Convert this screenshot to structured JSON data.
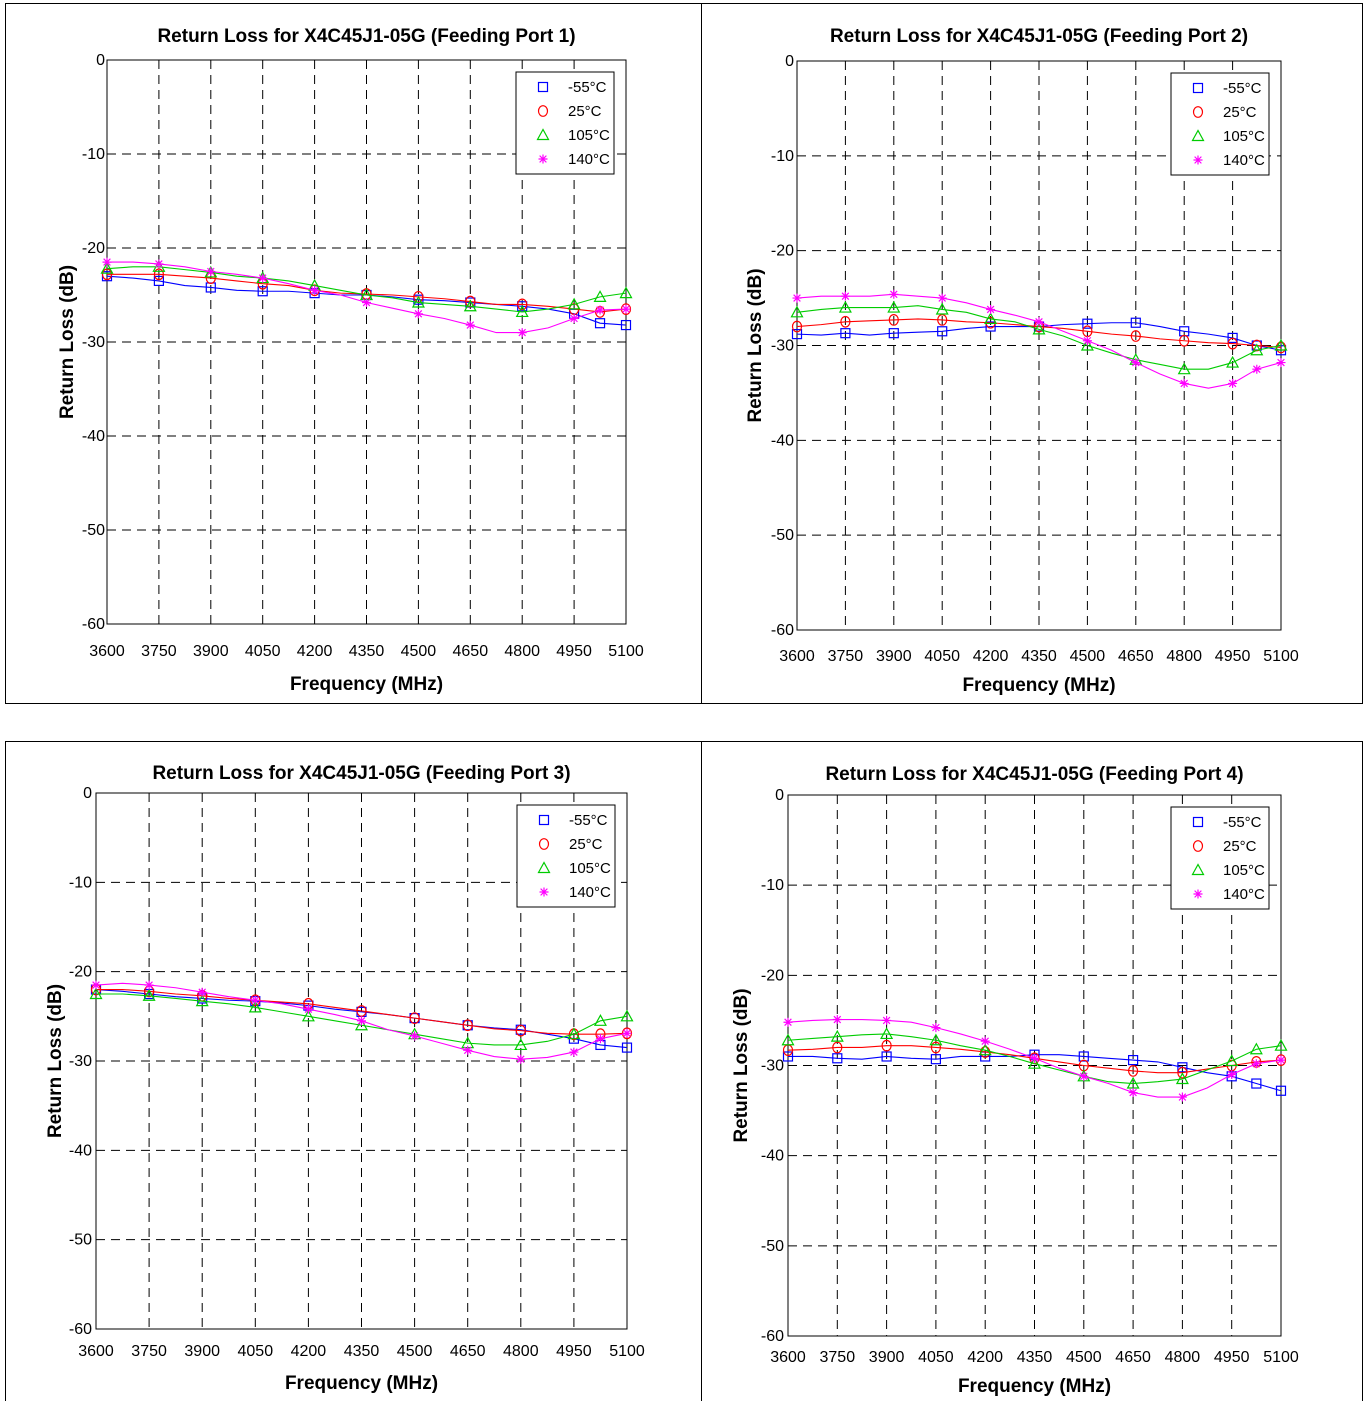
{
  "charts": [
    {
      "title": "Return Loss for X4C45J1-05G (Feeding Port 1)",
      "xlabel": "Frequency (MHz)",
      "ylabel": "Return Loss (dB)"
    },
    {
      "title": "Return Loss for X4C45J1-05G (Feeding Port 2)",
      "xlabel": "Frequency (MHz)",
      "ylabel": "Return Loss (dB)"
    },
    {
      "title": "Return Loss for X4C45J1-05G (Feeding Port 3)",
      "xlabel": "Frequency (MHz)",
      "ylabel": "Return Loss (dB)"
    },
    {
      "title": "Return Loss for X4C45J1-05G (Feeding Port 4)",
      "xlabel": "Frequency (MHz)",
      "ylabel": "Return Loss (dB)"
    }
  ],
  "chart_data": [
    {
      "type": "line",
      "title": "Return Loss for X4C45J1-05G (Feeding Port 1)",
      "xlabel": "Frequency (MHz)",
      "ylabel": "Return Loss (dB)",
      "xlim": [
        3600,
        5100
      ],
      "ylim": [
        -60,
        0
      ],
      "xticks": [
        3600,
        3750,
        3900,
        4050,
        4200,
        4350,
        4500,
        4650,
        4800,
        4950,
        5100
      ],
      "yticks": [
        0,
        -10,
        -20,
        -30,
        -40,
        -50,
        -60
      ],
      "grid": true,
      "legend_position": "top-right",
      "x": [
        3600,
        3675,
        3750,
        3825,
        3900,
        3975,
        4050,
        4125,
        4200,
        4275,
        4350,
        4425,
        4500,
        4575,
        4650,
        4725,
        4800,
        4875,
        4950,
        5025,
        5100
      ],
      "series": [
        {
          "name": "-55°C",
          "color": "#0000ff",
          "marker": "square",
          "values": [
            -23.0,
            -23.2,
            -23.5,
            -24.0,
            -24.2,
            -24.5,
            -24.6,
            -24.6,
            -24.8,
            -25.0,
            -25.0,
            -25.2,
            -25.5,
            -25.6,
            -25.8,
            -26.0,
            -26.2,
            -26.5,
            -27.0,
            -28.0,
            -28.2
          ]
        },
        {
          "name": "25°C",
          "color": "#ff0000",
          "marker": "circle",
          "values": [
            -22.8,
            -22.8,
            -22.8,
            -23.0,
            -23.2,
            -23.5,
            -23.8,
            -24.0,
            -24.5,
            -24.8,
            -24.9,
            -25.0,
            -25.2,
            -25.4,
            -25.7,
            -26.0,
            -26.0,
            -26.2,
            -26.5,
            -26.8,
            -26.5
          ]
        },
        {
          "name": "105°C",
          "color": "#00cc00",
          "marker": "triangle",
          "values": [
            -22.2,
            -22.0,
            -22.0,
            -22.3,
            -22.6,
            -23.0,
            -23.2,
            -23.5,
            -24.0,
            -24.5,
            -25.0,
            -25.3,
            -25.8,
            -26.0,
            -26.2,
            -26.5,
            -26.8,
            -26.5,
            -26.0,
            -25.2,
            -24.8
          ]
        },
        {
          "name": "140°C",
          "color": "#ff00ff",
          "marker": "star",
          "values": [
            -21.5,
            -21.5,
            -21.7,
            -22.0,
            -22.5,
            -22.8,
            -23.2,
            -23.8,
            -24.5,
            -25.0,
            -25.8,
            -26.4,
            -27.0,
            -27.5,
            -28.2,
            -29.0,
            -29.0,
            -28.5,
            -27.5,
            -26.6,
            -26.5
          ]
        }
      ]
    },
    {
      "type": "line",
      "title": "Return Loss for X4C45J1-05G (Feeding Port 2)",
      "xlabel": "Frequency (MHz)",
      "ylabel": "Return Loss (dB)",
      "xlim": [
        3600,
        5100
      ],
      "ylim": [
        -60,
        0
      ],
      "xticks": [
        3600,
        3750,
        3900,
        4050,
        4200,
        4350,
        4500,
        4650,
        4800,
        4950,
        5100
      ],
      "yticks": [
        0,
        -10,
        -20,
        -30,
        -40,
        -50,
        -60
      ],
      "grid": true,
      "legend_position": "top-right",
      "x": [
        3600,
        3675,
        3750,
        3825,
        3900,
        3975,
        4050,
        4125,
        4200,
        4275,
        4350,
        4425,
        4500,
        4575,
        4650,
        4725,
        4800,
        4875,
        4950,
        5025,
        5100
      ],
      "series": [
        {
          "name": "-55°C",
          "color": "#0000ff",
          "marker": "square",
          "values": [
            -28.8,
            -28.9,
            -28.7,
            -28.9,
            -28.7,
            -28.6,
            -28.5,
            -28.2,
            -28.0,
            -28.0,
            -28.0,
            -27.8,
            -27.7,
            -27.6,
            -27.6,
            -28.0,
            -28.5,
            -28.8,
            -29.2,
            -30.0,
            -30.5
          ]
        },
        {
          "name": "25°C",
          "color": "#ff0000",
          "marker": "circle",
          "values": [
            -28.0,
            -27.8,
            -27.5,
            -27.4,
            -27.3,
            -27.2,
            -27.3,
            -27.5,
            -27.6,
            -27.8,
            -28.0,
            -28.2,
            -28.5,
            -28.8,
            -29.0,
            -29.3,
            -29.5,
            -29.7,
            -29.8,
            -30.0,
            -30.2
          ]
        },
        {
          "name": "105°C",
          "color": "#00cc00",
          "marker": "triangle",
          "values": [
            -26.5,
            -26.2,
            -26.0,
            -26.0,
            -26.0,
            -25.8,
            -26.2,
            -26.5,
            -27.2,
            -27.5,
            -28.3,
            -29.0,
            -30.0,
            -30.8,
            -31.5,
            -32.0,
            -32.5,
            -32.5,
            -31.8,
            -30.5,
            -30.0
          ]
        },
        {
          "name": "140°C",
          "color": "#ff00ff",
          "marker": "star",
          "values": [
            -25.0,
            -24.8,
            -24.8,
            -24.8,
            -24.6,
            -24.8,
            -25.0,
            -25.5,
            -26.2,
            -26.8,
            -27.5,
            -28.5,
            -29.5,
            -30.5,
            -31.8,
            -33.0,
            -34.0,
            -34.5,
            -34.0,
            -32.5,
            -31.8
          ]
        }
      ]
    },
    {
      "type": "line",
      "title": "Return Loss for X4C45J1-05G (Feeding Port 3)",
      "xlabel": "Frequency (MHz)",
      "ylabel": "Return Loss (dB)",
      "xlim": [
        3600,
        5100
      ],
      "ylim": [
        -60,
        0
      ],
      "xticks": [
        3600,
        3750,
        3900,
        4050,
        4200,
        4350,
        4500,
        4650,
        4800,
        4950,
        5100
      ],
      "yticks": [
        0,
        -10,
        -20,
        -30,
        -40,
        -50,
        -60
      ],
      "grid": true,
      "legend_position": "top-right",
      "x": [
        3600,
        3675,
        3750,
        3825,
        3900,
        3975,
        4050,
        4125,
        4200,
        4275,
        4350,
        4425,
        4500,
        4575,
        4650,
        4725,
        4800,
        4875,
        4950,
        5025,
        5100
      ],
      "series": [
        {
          "name": "-55°C",
          "color": "#0000ff",
          "marker": "square",
          "values": [
            -22.0,
            -22.2,
            -22.5,
            -22.8,
            -23.0,
            -23.2,
            -23.3,
            -23.5,
            -23.8,
            -24.2,
            -24.5,
            -24.8,
            -25.2,
            -25.6,
            -26.0,
            -26.3,
            -26.5,
            -27.0,
            -27.5,
            -28.2,
            -28.5
          ]
        },
        {
          "name": "25°C",
          "color": "#ff0000",
          "marker": "circle",
          "values": [
            -22.0,
            -22.0,
            -22.2,
            -22.5,
            -22.7,
            -23.0,
            -23.2,
            -23.4,
            -23.6,
            -24.0,
            -24.4,
            -24.8,
            -25.2,
            -25.6,
            -26.0,
            -26.4,
            -26.6,
            -26.9,
            -27.0,
            -27.0,
            -26.9
          ]
        },
        {
          "name": "105°C",
          "color": "#00cc00",
          "marker": "triangle",
          "values": [
            -22.5,
            -22.5,
            -22.7,
            -23.0,
            -23.3,
            -23.6,
            -24.0,
            -24.5,
            -25.0,
            -25.5,
            -26.0,
            -26.5,
            -27.0,
            -27.5,
            -28.0,
            -28.2,
            -28.2,
            -27.8,
            -27.0,
            -25.5,
            -25.0
          ]
        },
        {
          "name": "140°C",
          "color": "#ff00ff",
          "marker": "star",
          "values": [
            -21.5,
            -21.3,
            -21.5,
            -21.8,
            -22.3,
            -22.8,
            -23.2,
            -23.6,
            -24.2,
            -24.8,
            -25.5,
            -26.5,
            -27.2,
            -28.0,
            -28.8,
            -29.5,
            -29.8,
            -29.6,
            -29.0,
            -27.5,
            -26.9
          ]
        }
      ]
    },
    {
      "type": "line",
      "title": "Return Loss for X4C45J1-05G (Feeding Port 4)",
      "xlabel": "Frequency (MHz)",
      "ylabel": "Return Loss (dB)",
      "xlim": [
        3600,
        5100
      ],
      "ylim": [
        -60,
        0
      ],
      "xticks": [
        3600,
        3750,
        3900,
        4050,
        4200,
        4350,
        4500,
        4650,
        4800,
        4950,
        5100
      ],
      "yticks": [
        0,
        -10,
        -20,
        -30,
        -40,
        -50,
        -60
      ],
      "grid": true,
      "legend_position": "top-right",
      "x": [
        3600,
        3675,
        3750,
        3825,
        3900,
        3975,
        4050,
        4125,
        4200,
        4275,
        4350,
        4425,
        4500,
        4575,
        4650,
        4725,
        4800,
        4875,
        4950,
        5025,
        5100
      ],
      "series": [
        {
          "name": "-55°C",
          "color": "#0000ff",
          "marker": "square",
          "values": [
            -29.0,
            -29.0,
            -29.2,
            -29.3,
            -29.0,
            -29.2,
            -29.3,
            -29.0,
            -29.0,
            -29.0,
            -28.8,
            -28.8,
            -29.0,
            -29.2,
            -29.4,
            -29.6,
            -30.2,
            -30.8,
            -31.2,
            -32.0,
            -32.8
          ]
        },
        {
          "name": "25°C",
          "color": "#ff0000",
          "marker": "circle",
          "values": [
            -28.3,
            -28.2,
            -28.0,
            -28.0,
            -27.8,
            -27.8,
            -28.0,
            -28.2,
            -28.5,
            -28.8,
            -29.2,
            -29.6,
            -30.0,
            -30.3,
            -30.6,
            -30.8,
            -30.8,
            -30.4,
            -30.0,
            -29.6,
            -29.4
          ]
        },
        {
          "name": "105°C",
          "color": "#00cc00",
          "marker": "triangle",
          "values": [
            -27.2,
            -27.0,
            -26.8,
            -26.6,
            -26.5,
            -26.8,
            -27.2,
            -27.8,
            -28.3,
            -29.0,
            -29.8,
            -30.5,
            -31.2,
            -31.8,
            -32.0,
            -31.8,
            -31.5,
            -30.5,
            -29.5,
            -28.2,
            -27.8
          ]
        },
        {
          "name": "140°C",
          "color": "#ff00ff",
          "marker": "star",
          "values": [
            -25.2,
            -25.0,
            -24.9,
            -24.9,
            -25.0,
            -25.2,
            -25.8,
            -26.5,
            -27.3,
            -28.2,
            -29.2,
            -30.3,
            -31.2,
            -32.0,
            -33.0,
            -33.5,
            -33.5,
            -32.5,
            -31.0,
            -29.8,
            -29.4
          ]
        }
      ]
    }
  ]
}
